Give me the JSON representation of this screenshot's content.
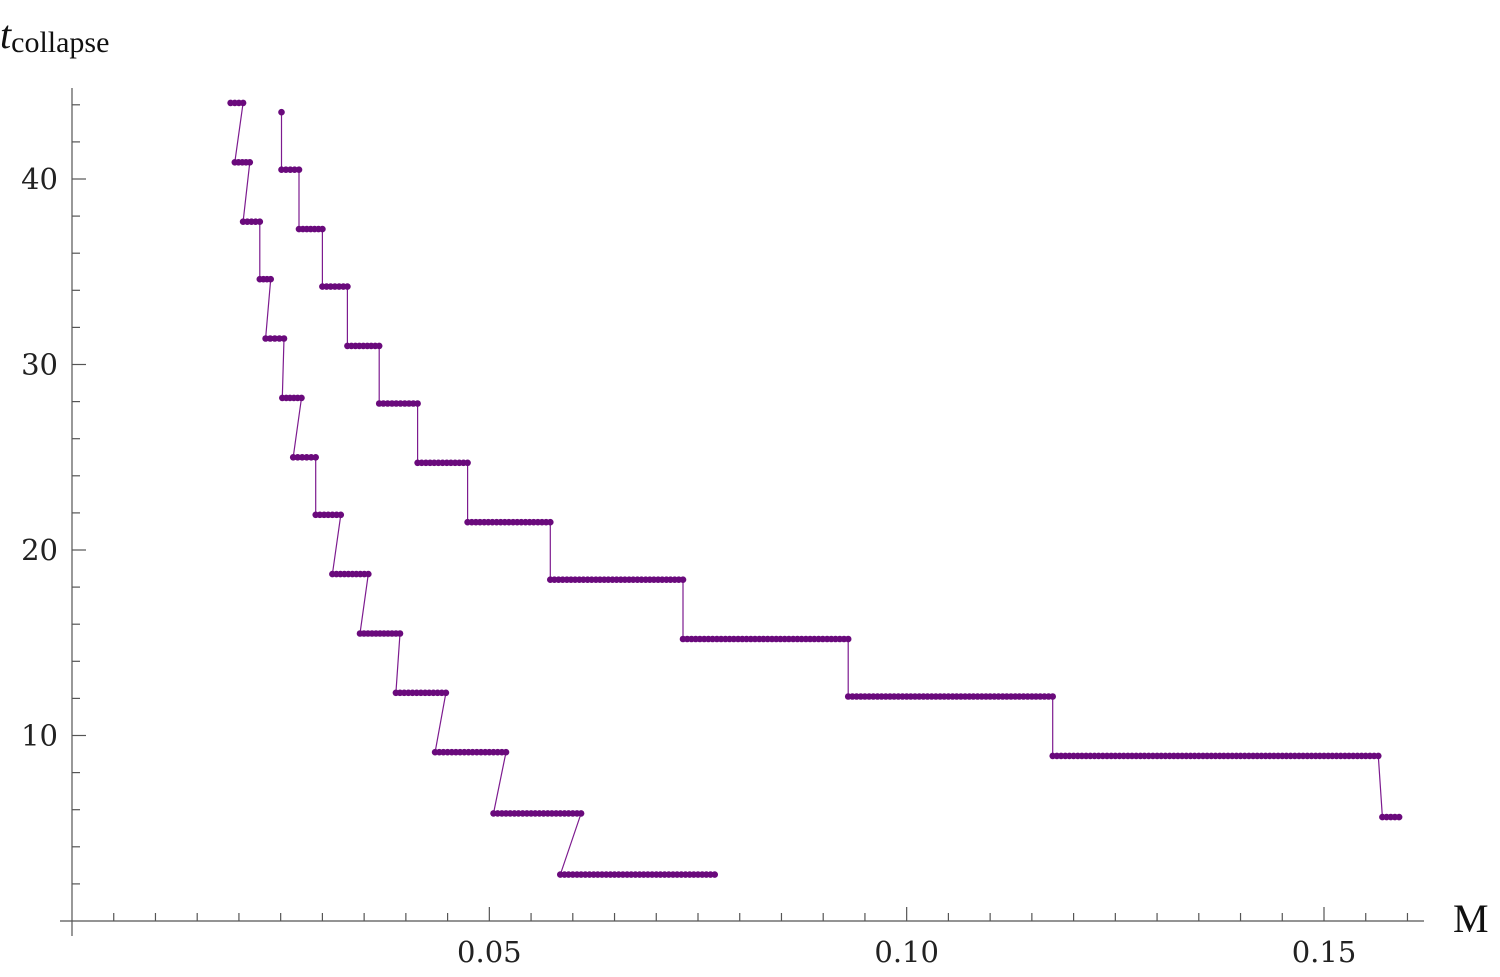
{
  "chart_data": {
    "type": "scatter",
    "xlabel": "M",
    "ylabel": "t",
    "ylabel_sub": "collapse",
    "xlim": [
      0,
      0.162
    ],
    "ylim": [
      0,
      45
    ],
    "x_ticks": [
      0.05,
      0.1,
      0.15
    ],
    "x_tick_labels": [
      "0.05",
      "0.10",
      "0.15"
    ],
    "y_ticks": [
      10,
      20,
      30,
      40
    ],
    "y_tick_labels": [
      "10",
      "20",
      "30",
      "40"
    ],
    "grid": false,
    "colors": {
      "series": "#6a0a7c",
      "axis": "#555555"
    },
    "series": [
      {
        "step_runs": [
          [
            0.019,
            0.0205,
            44.1
          ],
          [
            0.0195,
            0.0213,
            40.9
          ],
          [
            0.0205,
            0.0225,
            37.7
          ],
          [
            0.0225,
            0.0238,
            34.6
          ],
          [
            0.0232,
            0.0254,
            31.4
          ],
          [
            0.0252,
            0.0275,
            28.2
          ],
          [
            0.0265,
            0.0292,
            25.0
          ],
          [
            0.0292,
            0.0322,
            21.9
          ],
          [
            0.0312,
            0.0355,
            18.7
          ],
          [
            0.0345,
            0.0393,
            15.5
          ],
          [
            0.0388,
            0.0448,
            12.3
          ],
          [
            0.0435,
            0.052,
            9.1
          ],
          [
            0.0505,
            0.061,
            5.8
          ],
          [
            0.0585,
            0.077,
            2.5
          ]
        ]
      },
      {
        "step_runs": [
          [
            0.0251,
            0.0251,
            43.6
          ],
          [
            0.0251,
            0.0272,
            40.5
          ],
          [
            0.0272,
            0.03,
            37.3
          ],
          [
            0.03,
            0.033,
            34.2
          ],
          [
            0.033,
            0.0368,
            31.0
          ],
          [
            0.0368,
            0.0414,
            27.9
          ],
          [
            0.0414,
            0.0474,
            24.7
          ],
          [
            0.0474,
            0.0573,
            21.5
          ],
          [
            0.0573,
            0.0732,
            18.4
          ],
          [
            0.0732,
            0.093,
            15.2
          ],
          [
            0.093,
            0.1175,
            12.1
          ],
          [
            0.1175,
            0.1565,
            8.9
          ],
          [
            0.157,
            0.159,
            5.6
          ]
        ]
      }
    ]
  }
}
